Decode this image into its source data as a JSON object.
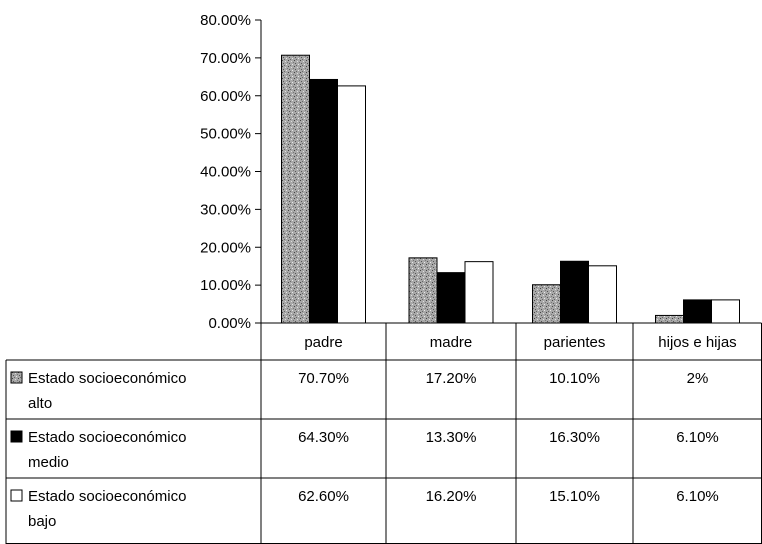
{
  "chart_data": {
    "type": "bar",
    "categories": [
      "padre",
      "madre",
      "parientes",
      "hijos e hijas"
    ],
    "series": [
      {
        "name": "Estado socioeconómico alto",
        "values": [
          70.7,
          17.2,
          10.1,
          2.0
        ],
        "color": "#9a9a9a",
        "pattern": "speckled"
      },
      {
        "name": "Estado socioeconómico medio",
        "values": [
          64.3,
          13.3,
          16.3,
          6.1
        ],
        "color": "#000000",
        "pattern": "solid"
      },
      {
        "name": "Estado socioeconómico bajo",
        "values": [
          62.6,
          16.2,
          15.1,
          6.1
        ],
        "color": "#ffffff",
        "pattern": "outline"
      }
    ],
    "y_ticks": [
      "0.00%",
      "10.00%",
      "20.00%",
      "30.00%",
      "40.00%",
      "50.00%",
      "60.00%",
      "70.00%",
      "80.00%"
    ],
    "ylim": [
      0,
      80
    ],
    "grid": false,
    "legend": "data-table",
    "data_table": {
      "rows": [
        {
          "label_line1": "Estado socioeconómico",
          "label_line2": "alto",
          "cells": [
            "70.70%",
            "17.20%",
            "10.10%",
            "2%"
          ]
        },
        {
          "label_line1": "Estado socioeconómico",
          "label_line2": "medio",
          "cells": [
            "64.30%",
            "13.30%",
            "16.30%",
            "6.10%"
          ]
        },
        {
          "label_line1": "Estado socioeconómico",
          "label_line2": "bajo",
          "cells": [
            "62.60%",
            "16.20%",
            "15.10%",
            "6.10%"
          ]
        }
      ]
    }
  }
}
